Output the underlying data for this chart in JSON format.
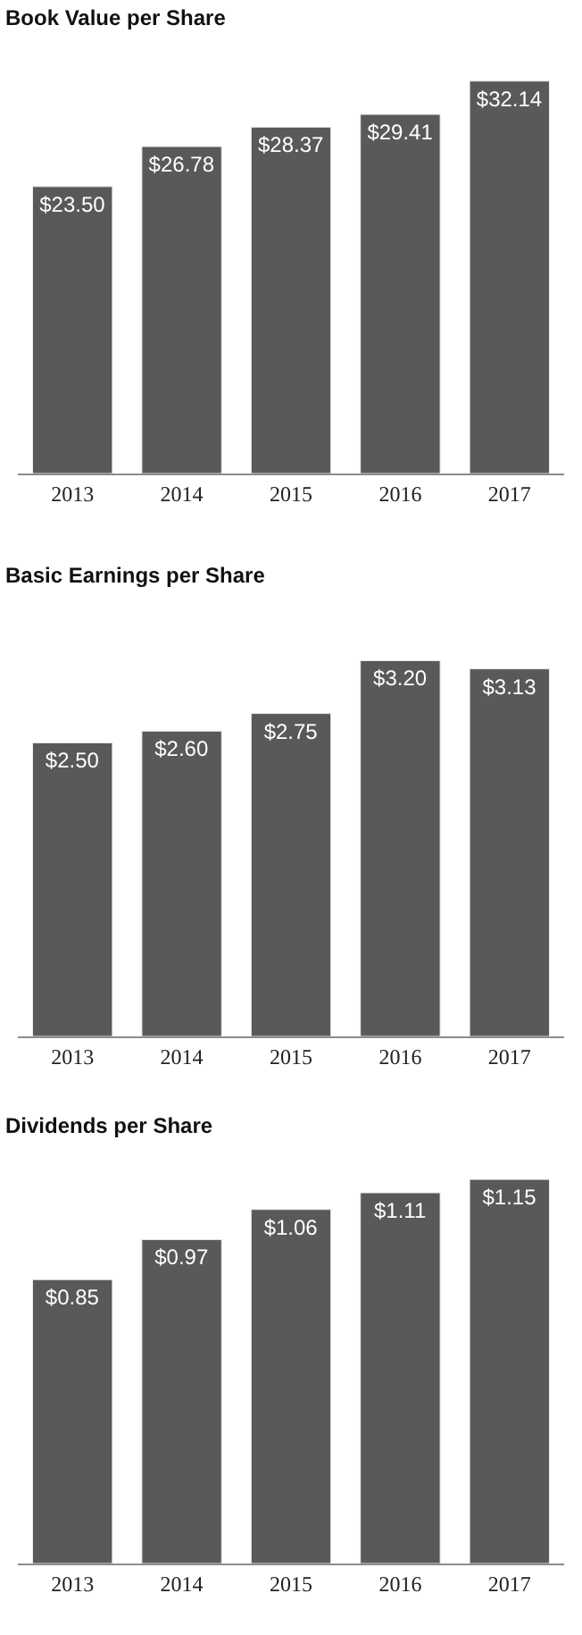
{
  "chart_data": [
    {
      "type": "bar",
      "title": "Book Value per Share",
      "categories": [
        "2013",
        "2014",
        "2015",
        "2016",
        "2017"
      ],
      "values": [
        23.5,
        26.78,
        28.37,
        29.41,
        32.14
      ],
      "value_labels": [
        "$23.50",
        "$26.78",
        "$28.37",
        "$29.41",
        "$32.14"
      ],
      "color": "#595959"
    },
    {
      "type": "bar",
      "title": "Basic Earnings per Share",
      "categories": [
        "2013",
        "2014",
        "2015",
        "2016",
        "2017"
      ],
      "values": [
        2.5,
        2.6,
        2.75,
        3.2,
        3.13
      ],
      "value_labels": [
        "$2.50",
        "$2.60",
        "$2.75",
        "$3.20",
        "$3.13"
      ],
      "color": "#595959"
    },
    {
      "type": "bar",
      "title": "Dividends per Share",
      "categories": [
        "2013",
        "2014",
        "2015",
        "2016",
        "2017"
      ],
      "values": [
        0.85,
        0.97,
        1.06,
        1.11,
        1.15
      ],
      "value_labels": [
        "$0.85",
        "$0.97",
        "$1.06",
        "$1.11",
        "$1.15"
      ],
      "color": "#595959"
    }
  ]
}
